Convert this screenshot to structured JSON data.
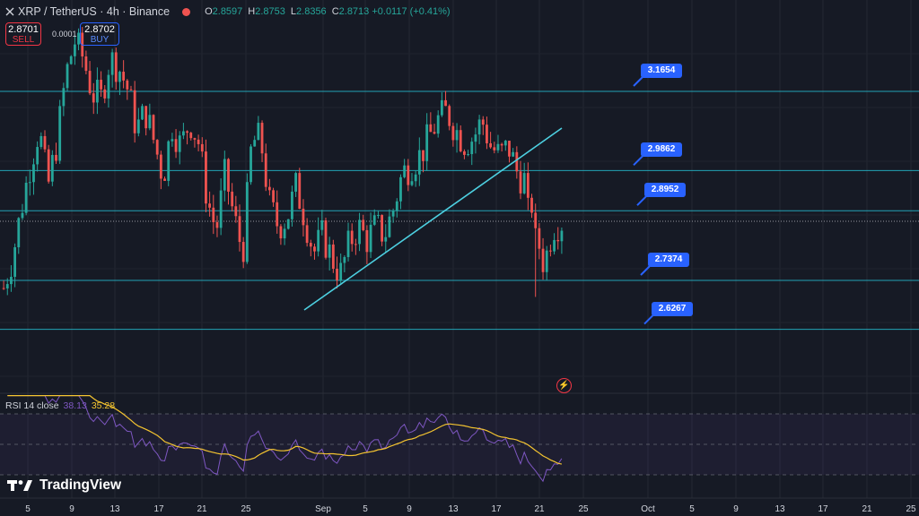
{
  "header": {
    "symbol_line": "XRP / TetherUS · 4h · Binance",
    "ohlc": {
      "o_key": "O",
      "o_val": "2.8597",
      "h_key": "H",
      "h_val": "2.8753",
      "l_key": "L",
      "l_val": "2.8356",
      "c_key": "C",
      "c_val": "2.8713 +0.0117 (+0.41%)"
    }
  },
  "trade": {
    "sell_price": "2.8701",
    "sell_label": "SELL",
    "spread": "0.0001",
    "buy_price": "2.8702",
    "buy_label": "BUY"
  },
  "levels": [
    {
      "label": "3.1654",
      "price": 3.1654
    },
    {
      "label": "2.9862",
      "price": 2.9862
    },
    {
      "label": "2.8952",
      "price": 2.8952
    },
    {
      "label": "2.7374",
      "price": 2.7374
    },
    {
      "label": "2.6267",
      "price": 2.6267
    }
  ],
  "current_price": 2.8713,
  "rsi": {
    "label": "RSI 14 close",
    "value": "38.13",
    "ma_value": "35.28",
    "upper_band": 70,
    "middle_band": 50,
    "lower_band": 30
  },
  "x_axis": [
    "5",
    "9",
    "13",
    "17",
    "21",
    "25",
    "Sep",
    "5",
    "9",
    "13",
    "17",
    "21",
    "25",
    "Oct",
    "5",
    "9",
    "13",
    "17",
    "21",
    "25"
  ],
  "brand": "TradingView",
  "colors": {
    "background": "#161a25",
    "up": "#26a69a",
    "down": "#ef5350",
    "level_line": "#26c6da",
    "trendline": "#4dd0e1",
    "tag": "#2962ff",
    "rsi_line": "#7e57c2",
    "rsi_ma": "#f4c430"
  },
  "chart_data": {
    "type": "candlestick",
    "symbol": "XRP / TetherUS",
    "timeframe": "4h",
    "price_path": [
      2.72,
      2.79,
      2.9,
      3.0,
      3.08,
      2.95,
      3.05,
      3.2,
      3.28,
      3.24,
      3.16,
      3.15,
      3.24,
      3.22,
      3.17,
      3.08,
      3.12,
      3.05,
      2.97,
      3.09,
      3.04,
      3.1,
      3.05,
      2.92,
      2.85,
      2.98,
      2.88,
      2.8,
      3.05,
      3.06,
      2.91,
      2.86,
      2.88,
      2.95,
      2.88,
      2.8,
      2.84,
      2.79,
      2.75,
      2.82,
      2.86,
      2.83,
      2.86,
      2.84,
      2.9,
      2.98,
      3.0,
      3.02,
      3.06,
      3.1,
      3.12,
      3.08,
      3.05,
      3.06,
      3.1,
      3.04,
      3.02,
      3.04,
      2.98,
      2.96,
      2.88,
      2.77,
      2.86,
      2.87
    ],
    "trendline": {
      "from": [
        "Aug 31",
        2.71
      ],
      "to": [
        "Sep 23",
        3.08
      ]
    }
  }
}
